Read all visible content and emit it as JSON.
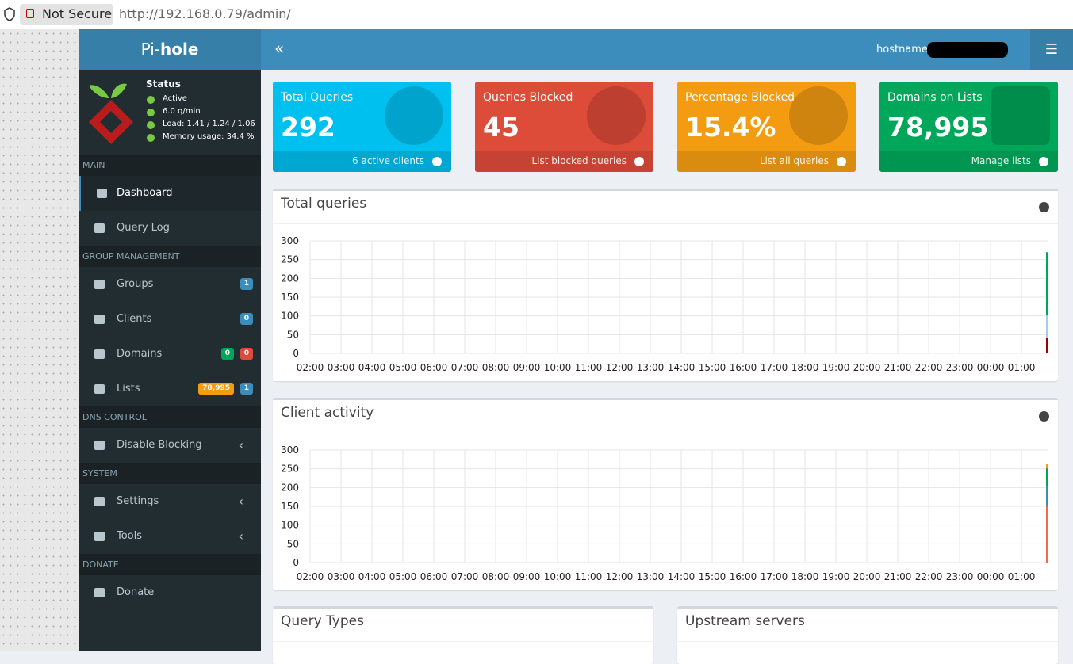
{
  "browser": {
    "security": "Not Secure",
    "url": "http://192.168.0.79/admin/"
  },
  "sidebar": {
    "brand_prefix": "Pi-",
    "brand_bold": "hole",
    "status": {
      "title": "Status",
      "items": [
        "Active",
        "6.0 q/min",
        "Load: 1.41 / 1.24 / 1.06",
        "Memory usage: 34.4 %"
      ]
    },
    "sections": [
      {
        "heading": "MAIN",
        "items": [
          {
            "label": "Dashboard"
          },
          {
            "label": "Query Log"
          }
        ]
      },
      {
        "heading": "GROUP MANAGEMENT",
        "items": [
          {
            "label": "Groups",
            "badges": [
              {
                "text": "1",
                "color": "#3c8dbc"
              }
            ]
          },
          {
            "label": "Clients",
            "badges": [
              {
                "text": "0",
                "color": "#3c8dbc"
              }
            ]
          },
          {
            "label": "Domains",
            "badges": [
              {
                "text": "0",
                "color": "#00a65a"
              },
              {
                "text": "0",
                "color": "#dd4b39"
              }
            ]
          },
          {
            "label": "Lists",
            "badges": [
              {
                "text": "78,995",
                "color": "#f39c12"
              },
              {
                "text": "1",
                "color": "#3c8dbc"
              }
            ]
          }
        ]
      },
      {
        "heading": "DNS CONTROL",
        "items": [
          {
            "label": "Disable Blocking"
          }
        ]
      },
      {
        "heading": "SYSTEM",
        "items": [
          {
            "label": "Settings"
          },
          {
            "label": "Tools"
          }
        ]
      },
      {
        "heading": "DONATE",
        "items": [
          {
            "label": "Donate"
          }
        ]
      }
    ]
  },
  "header": {
    "hostname_label": "hostname:"
  },
  "stat_boxes": [
    {
      "title": "Total Queries",
      "value": "292",
      "link": "6 active clients",
      "color": "#00c0ef",
      "footer_color": "#00a7d0"
    },
    {
      "title": "Queries Blocked",
      "value": "45",
      "link": "List blocked queries",
      "color": "#dd4b39",
      "footer_color": "#c64333"
    },
    {
      "title": "Percentage Blocked",
      "value": "15.4%",
      "link": "List all queries",
      "color": "#f39c12",
      "footer_color": "#da8c10"
    },
    {
      "title": "Domains on Lists",
      "value": "78,995",
      "link": "Manage lists",
      "color": "#00a65a",
      "footer_color": "#009551"
    }
  ],
  "charts": [
    {
      "type": "bar",
      "title": "Total queries",
      "xticks": [
        "02:00",
        "03:00",
        "04:00",
        "05:00",
        "06:00",
        "07:00",
        "08:00",
        "09:00",
        "10:00",
        "11:00",
        "12:00",
        "13:00",
        "14:00",
        "15:00",
        "16:00",
        "17:00",
        "18:00",
        "19:00",
        "20:00",
        "21:00",
        "22:00",
        "23:00",
        "00:00",
        "01:00"
      ],
      "ylim": [
        0,
        300
      ],
      "yticks": [
        0,
        50,
        100,
        150,
        200,
        250,
        300
      ],
      "grid": true,
      "series": [
        {
          "color": "#a00000",
          "values": [
            42
          ]
        },
        {
          "color": "#a9c9ef",
          "values": [
            59
          ]
        },
        {
          "color": "#00a65a",
          "values": [
            169
          ]
        }
      ]
    },
    {
      "type": "bar",
      "title": "Client activity",
      "xticks": [
        "02:00",
        "03:00",
        "04:00",
        "05:00",
        "06:00",
        "07:00",
        "08:00",
        "09:00",
        "10:00",
        "11:00",
        "12:00",
        "13:00",
        "14:00",
        "15:00",
        "16:00",
        "17:00",
        "18:00",
        "19:00",
        "20:00",
        "21:00",
        "22:00",
        "23:00",
        "00:00",
        "01:00"
      ],
      "ylim": [
        0,
        300
      ],
      "yticks": [
        0,
        50,
        100,
        150,
        200,
        250,
        300
      ],
      "grid": true,
      "series": [
        {
          "color": "#f56954",
          "values": [
            150
          ]
        },
        {
          "color": "#3c8dbc",
          "values": [
            53
          ]
        },
        {
          "color": "#00a65a",
          "values": [
            48
          ]
        },
        {
          "color": "#f39c12",
          "values": [
            11
          ]
        }
      ]
    }
  ],
  "panels": [
    {
      "title": "Query Types"
    },
    {
      "title": "Upstream servers"
    }
  ]
}
